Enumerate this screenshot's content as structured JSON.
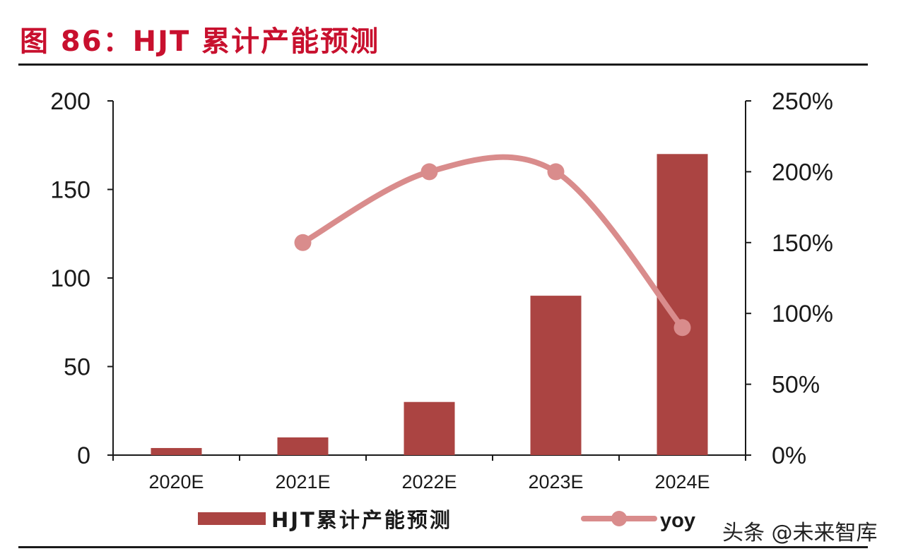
{
  "figure": {
    "title": "图 86：HJT 累计产能预测",
    "watermark": "头条 @未来智库"
  },
  "chart_data": {
    "type": "bar",
    "categories": [
      "2020E",
      "2021E",
      "2022E",
      "2023E",
      "2024E"
    ],
    "series": [
      {
        "name": "HJT累计产能预测",
        "type": "bar",
        "axis": "left",
        "values": [
          4,
          10,
          30,
          90,
          170
        ]
      },
      {
        "name": "yoy",
        "type": "line",
        "axis": "right",
        "values": [
          null,
          1.5,
          2.0,
          2.0,
          0.9
        ]
      }
    ],
    "y_left": {
      "min": 0,
      "max": 200,
      "ticks": [
        0,
        50,
        100,
        150,
        200
      ],
      "tick_labels": [
        "0",
        "50",
        "100",
        "150",
        "200"
      ]
    },
    "y_right": {
      "min": 0,
      "max": 2.5,
      "ticks": [
        0,
        0.5,
        1.0,
        1.5,
        2.0,
        2.5
      ],
      "tick_labels": [
        "0%",
        "50%",
        "100%",
        "150%",
        "200%",
        "250%"
      ]
    },
    "legend": {
      "position": "bottom"
    },
    "grid": false,
    "colors": {
      "bar": "#ab4442",
      "line": "#d98c8c",
      "axis": "#1a1a1a",
      "title": "#c8102e"
    }
  }
}
